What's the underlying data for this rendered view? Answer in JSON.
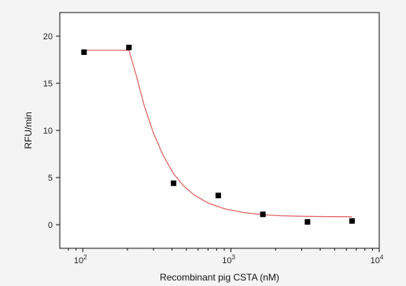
{
  "chart_data": {
    "type": "scatter",
    "title": "",
    "xlabel": "Recombinant pig CSTA (nM)",
    "ylabel": "RFU/min",
    "xscale": "log",
    "xlim": [
      70,
      10000
    ],
    "ylim": [
      -2.5,
      22.5
    ],
    "xticks": [
      {
        "value": 100,
        "base": "10",
        "exp": "2"
      },
      {
        "value": 1000,
        "base": "10",
        "exp": "3"
      },
      {
        "value": 10000,
        "base": "10",
        "exp": "4"
      }
    ],
    "yticks": [
      0,
      5,
      10,
      15,
      20
    ],
    "series": [
      {
        "marker": "square",
        "color": "#000000",
        "x": [
          102,
          205,
          410,
          820,
          1640,
          3280,
          6550
        ],
        "y": [
          18.3,
          18.8,
          4.4,
          3.1,
          1.1,
          0.3,
          0.4
        ]
      }
    ],
    "fit": {
      "color": "#e06a6a",
      "x": [
        102,
        205,
        230,
        260,
        300,
        350,
        410,
        480,
        560,
        700,
        900,
        1200,
        1640,
        2200,
        3280,
        4500,
        6550
      ],
      "y": [
        18.5,
        18.5,
        15.8,
        12.6,
        9.7,
        7.3,
        5.4,
        4.1,
        3.2,
        2.3,
        1.7,
        1.3,
        1.05,
        0.95,
        0.88,
        0.86,
        0.85
      ]
    },
    "grid": false,
    "legend": "none"
  }
}
